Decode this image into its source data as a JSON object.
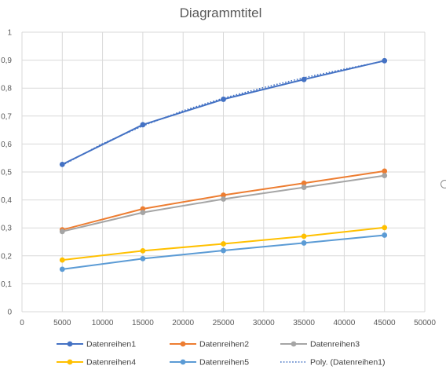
{
  "chart_data": {
    "type": "line",
    "title": "Diagrammtitel",
    "xlabel": "",
    "ylabel": "",
    "xlim": [
      0,
      50000
    ],
    "ylim": [
      0,
      1
    ],
    "xticks": [
      0,
      5000,
      10000,
      15000,
      20000,
      25000,
      30000,
      35000,
      40000,
      45000,
      50000
    ],
    "yticks": [
      "0",
      "0,1",
      "0,2",
      "0,3",
      "0,4",
      "0,5",
      "0,6",
      "0,7",
      "0,8",
      "0,9",
      "1"
    ],
    "grid": true,
    "legend_position": "bottom",
    "x": [
      5000,
      15000,
      25000,
      35000,
      45000
    ],
    "series": [
      {
        "name": "Datenreihen1",
        "color": "#4472C4",
        "values": [
          0.527,
          0.669,
          0.76,
          0.831,
          0.898
        ]
      },
      {
        "name": "Datenreihen2",
        "color": "#ED7D31",
        "values": [
          0.293,
          0.368,
          0.417,
          0.46,
          0.503
        ]
      },
      {
        "name": "Datenreihen3",
        "color": "#A5A5A5",
        "values": [
          0.287,
          0.355,
          0.403,
          0.445,
          0.487
        ]
      },
      {
        "name": "Datenreihen4",
        "color": "#FFC000",
        "values": [
          0.185,
          0.218,
          0.243,
          0.27,
          0.301
        ]
      },
      {
        "name": "Datenreihen5",
        "color": "#5B9BD5",
        "values": [
          0.152,
          0.19,
          0.219,
          0.246,
          0.274
        ]
      }
    ],
    "trendline": {
      "name": "Poly. (Datenreihen1)",
      "of_series": "Datenreihen1",
      "kind": "polynomial",
      "color": "#4472C4",
      "x": [
        5000,
        10000,
        15000,
        20000,
        25000,
        30000,
        35000,
        40000,
        45000
      ],
      "values": [
        0.524,
        0.601,
        0.665,
        0.719,
        0.764,
        0.802,
        0.837,
        0.868,
        0.897
      ]
    }
  }
}
